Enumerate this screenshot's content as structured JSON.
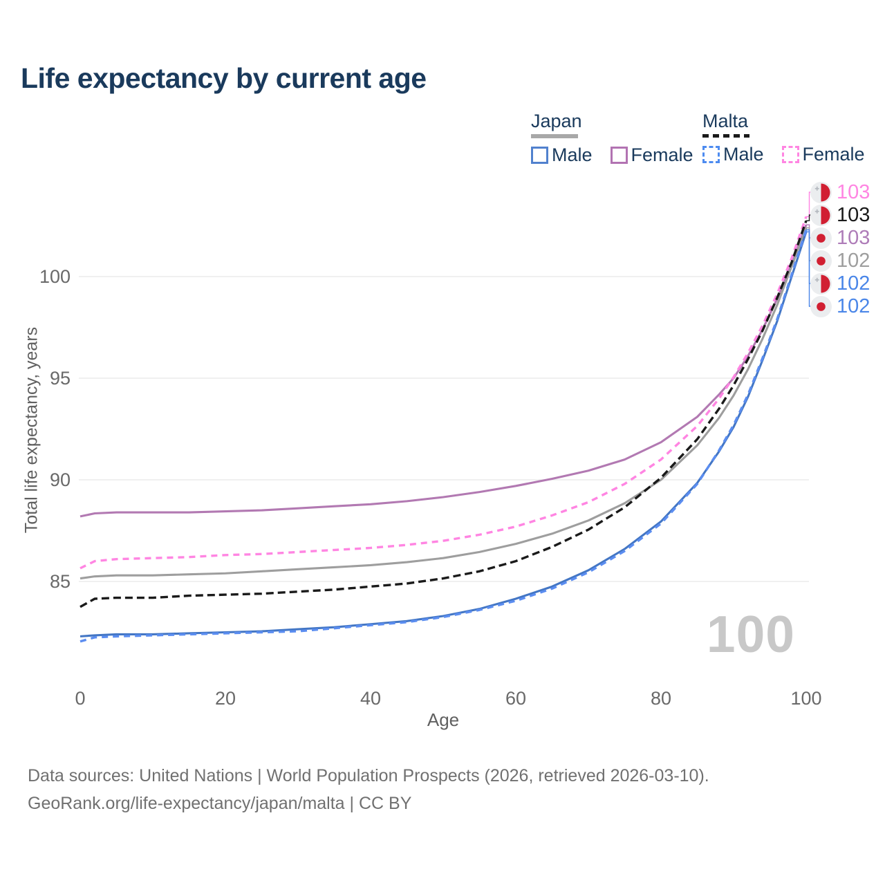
{
  "title": "Life expectancy by current age",
  "watermark": "100",
  "legend": {
    "groups": [
      {
        "label": "Japan",
        "underline": {
          "color": "#a8a8a8",
          "dashed": false
        },
        "items": [
          {
            "label": "Male",
            "color": "#5181ce",
            "dashed": false
          },
          {
            "label": "Female",
            "color": "#b273b2",
            "dashed": false
          }
        ]
      },
      {
        "label": "Malta",
        "underline": {
          "color": "#1a1a1a",
          "dashed": true
        },
        "items": [
          {
            "label": "Male",
            "color": "#4d8bf0",
            "dashed": true
          },
          {
            "label": "Female",
            "color": "#ff85e2",
            "dashed": true
          }
        ]
      }
    ]
  },
  "end_labels": [
    {
      "value": "103",
      "color": "#ff85e2",
      "flag": "malta",
      "series": 1
    },
    {
      "value": "103",
      "color": "#1a1a1a",
      "flag": "malta",
      "series": 3
    },
    {
      "value": "103",
      "color": "#ae7cb8",
      "flag": "japan",
      "series": 0
    },
    {
      "value": "102",
      "color": "#9e9e9e",
      "flag": "japan",
      "series": 2
    },
    {
      "value": "102",
      "color": "#4a86e8",
      "flag": "malta",
      "series": 5
    },
    {
      "value": "102",
      "color": "#4a86e8",
      "flag": "japan",
      "series": 4
    }
  ],
  "axes": {
    "x_label": "Age",
    "y_label": "Total life expectancy, years",
    "x_ticks": [
      0,
      20,
      40,
      60,
      80,
      100
    ],
    "y_ticks": [
      85,
      90,
      95,
      100
    ]
  },
  "footer": {
    "line1": "Data sources: United Nations | World Population Prospects (2026, retrieved 2026-03-10).",
    "line2": "GeoRank.org/life-expectancy/japan/malta | CC BY"
  },
  "chart_data": {
    "type": "line",
    "title": "Life expectancy by current age",
    "xlabel": "Age",
    "ylabel": "Total life expectancy, years",
    "xlim": [
      0,
      100
    ],
    "ylim": [
      81.5,
      103.5
    ],
    "grid": "horizontal",
    "legend_position": "top-right",
    "x": [
      0,
      2,
      5,
      10,
      15,
      20,
      25,
      30,
      35,
      40,
      45,
      50,
      55,
      60,
      65,
      70,
      75,
      80,
      85,
      88,
      90,
      92,
      94,
      96,
      98,
      100
    ],
    "series": [
      {
        "name": "Japan Female",
        "country": "japan",
        "sex": "female",
        "color": "#b279b2",
        "dash": null,
        "values": [
          88.2,
          88.35,
          88.4,
          88.4,
          88.4,
          88.45,
          88.5,
          88.6,
          88.7,
          88.8,
          88.95,
          89.15,
          89.4,
          89.7,
          90.05,
          90.45,
          91.0,
          91.85,
          93.1,
          94.2,
          95.0,
          96.1,
          97.4,
          98.9,
          100.6,
          102.55
        ]
      },
      {
        "name": "Malta Female",
        "country": "malta",
        "sex": "female",
        "color": "#ff85e2",
        "dash": "9 7",
        "values": [
          85.65,
          86.0,
          86.1,
          86.15,
          86.2,
          86.3,
          86.35,
          86.45,
          86.55,
          86.65,
          86.8,
          87.0,
          87.3,
          87.7,
          88.25,
          88.9,
          89.8,
          91.0,
          92.65,
          94.0,
          95.05,
          96.25,
          97.6,
          99.15,
          100.9,
          102.95
        ]
      },
      {
        "name": "Japan Both sexes",
        "country": "japan",
        "sex": "total",
        "color": "#9e9e9e",
        "dash": null,
        "values": [
          85.15,
          85.25,
          85.3,
          85.3,
          85.35,
          85.4,
          85.5,
          85.6,
          85.7,
          85.8,
          85.95,
          86.15,
          86.45,
          86.85,
          87.35,
          88.0,
          88.85,
          90.0,
          91.7,
          93.05,
          94.15,
          95.45,
          96.95,
          98.6,
          100.5,
          102.4
        ]
      },
      {
        "name": "Malta Both sexes",
        "country": "malta",
        "sex": "total",
        "color": "#1a1a1a",
        "dash": "11 6",
        "values": [
          83.75,
          84.15,
          84.2,
          84.2,
          84.3,
          84.35,
          84.4,
          84.5,
          84.6,
          84.75,
          84.9,
          85.15,
          85.5,
          86.0,
          86.7,
          87.55,
          88.65,
          90.1,
          92.0,
          93.5,
          94.65,
          95.95,
          97.35,
          98.95,
          100.7,
          102.75
        ]
      },
      {
        "name": "Japan Male",
        "country": "japan",
        "sex": "male",
        "color": "#4376c4",
        "dash": null,
        "values": [
          82.3,
          82.35,
          82.4,
          82.4,
          82.45,
          82.5,
          82.55,
          82.65,
          82.75,
          82.9,
          83.05,
          83.3,
          83.65,
          84.15,
          84.75,
          85.55,
          86.6,
          87.95,
          89.85,
          91.4,
          92.6,
          94.1,
          95.9,
          97.8,
          100.0,
          102.2
        ]
      },
      {
        "name": "Malta Male",
        "country": "malta",
        "sex": "male",
        "color": "#5b8df0",
        "dash": "9 7",
        "values": [
          82.05,
          82.25,
          82.3,
          82.35,
          82.4,
          82.45,
          82.5,
          82.55,
          82.7,
          82.85,
          83.0,
          83.25,
          83.6,
          84.05,
          84.65,
          85.45,
          86.5,
          87.85,
          89.8,
          91.45,
          92.7,
          94.2,
          96.0,
          97.9,
          100.1,
          102.3
        ]
      }
    ]
  }
}
